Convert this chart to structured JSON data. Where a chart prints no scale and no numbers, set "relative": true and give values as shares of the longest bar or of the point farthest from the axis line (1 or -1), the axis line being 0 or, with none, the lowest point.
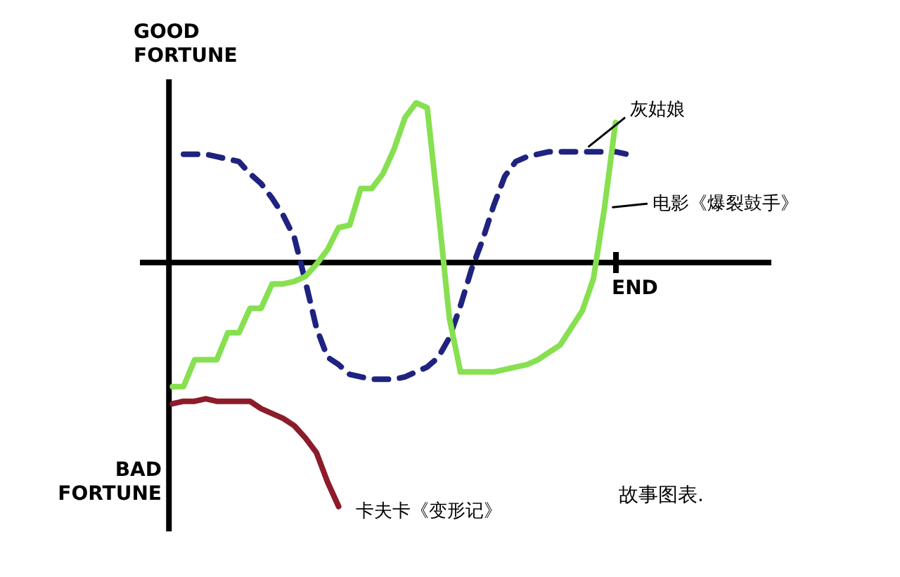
{
  "chart_data": {
    "type": "line",
    "relative": true,
    "categories": [
      null,
      null,
      null,
      null,
      null,
      null,
      null,
      null,
      null,
      null,
      null,
      null,
      null,
      null,
      null,
      null,
      null,
      null,
      null,
      null,
      null,
      null,
      null,
      null,
      null,
      null,
      null,
      null,
      null,
      null,
      null,
      null,
      null,
      null,
      null,
      null,
      null,
      null,
      null,
      null,
      null,
      null,
      null,
      null,
      null,
      null,
      null,
      null,
      null,
      null,
      null,
      null
    ],
    "annotations": [
      "GOOD FORTUNE",
      "BAD FORTUNE",
      "故事图表.",
      "END"
    ],
    "series": [
      {
        "name": "灰姑娘",
        "color": "#1f237f",
        "line_style": "dashed",
        "values": [
          null,
          0.44,
          0.44,
          0.44,
          0.43,
          0.42,
          0.41,
          0.36,
          0.32,
          0.26,
          0.19,
          0.1,
          -0.08,
          -0.27,
          -0.39,
          -0.42,
          -0.46,
          -0.47,
          -0.48,
          -0.48,
          -0.48,
          -0.47,
          -0.45,
          -0.43,
          -0.39,
          -0.31,
          -0.18,
          -0.03,
          0.09,
          0.23,
          0.35,
          0.41,
          0.43,
          0.44,
          0.45,
          0.45,
          0.45,
          0.45,
          0.45,
          0.45,
          0.45,
          0.44,
          null,
          null,
          null,
          null,
          null,
          null,
          null,
          null,
          null,
          null
        ]
      },
      {
        "name": "电影《爆裂鼓手》",
        "color": "#86e04f",
        "line_style": "solid",
        "values": [
          -0.51,
          -0.51,
          -0.4,
          -0.4,
          -0.4,
          -0.29,
          -0.29,
          -0.19,
          -0.19,
          -0.09,
          -0.09,
          -0.08,
          -0.06,
          -0.01,
          0.05,
          0.14,
          0.15,
          0.3,
          0.3,
          0.36,
          0.46,
          0.59,
          0.65,
          0.63,
          0.21,
          -0.23,
          -0.45,
          -0.45,
          -0.45,
          -0.45,
          -0.44,
          -0.43,
          -0.42,
          -0.4,
          -0.37,
          -0.34,
          -0.27,
          -0.2,
          -0.07,
          0.22,
          0.57,
          null,
          null,
          null,
          null,
          null,
          null,
          null,
          null,
          null,
          null,
          null
        ]
      },
      {
        "name": "卡夫卡《变形记》",
        "color": "#8c1c2a",
        "line_style": "solid",
        "values": [
          -0.58,
          -0.57,
          -0.57,
          -0.56,
          -0.57,
          -0.57,
          -0.57,
          -0.57,
          -0.6,
          -0.62,
          -0.64,
          -0.67,
          -0.72,
          -0.78,
          -0.9,
          -1.0,
          null,
          null,
          null,
          null,
          null,
          null,
          null,
          null,
          null,
          null,
          null,
          null,
          null,
          null,
          null,
          null,
          null,
          null,
          null,
          null,
          null,
          null,
          null,
          null,
          null,
          null,
          null,
          null,
          null,
          null,
          null,
          null,
          null,
          null,
          null,
          null
        ]
      }
    ]
  }
}
